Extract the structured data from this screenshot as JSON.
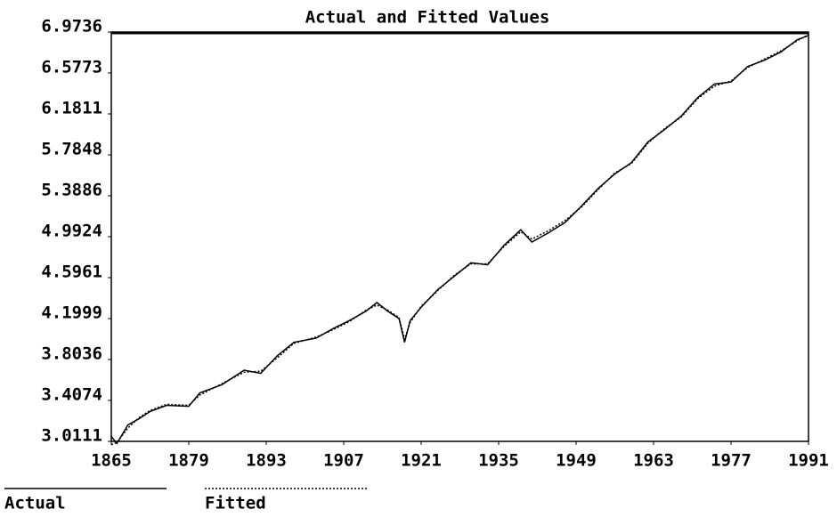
{
  "chart_data": {
    "type": "line",
    "title": "Actual and Fitted Values",
    "x": [
      1865,
      1866,
      1868,
      1870,
      1872,
      1875,
      1879,
      1881,
      1885,
      1889,
      1892,
      1895,
      1898,
      1902,
      1905,
      1908,
      1911,
      1913,
      1915,
      1917,
      1918,
      1919,
      1921,
      1924,
      1927,
      1930,
      1933,
      1936,
      1939,
      1941,
      1944,
      1947,
      1950,
      1953,
      1956,
      1959,
      1962,
      1965,
      1968,
      1971,
      1974,
      1977,
      1980,
      1983,
      1986,
      1989,
      1991
    ],
    "series": [
      {
        "name": "Actual",
        "color": "#000000",
        "values": [
          3.06,
          2.99,
          3.17,
          3.23,
          3.3,
          3.36,
          3.35,
          3.48,
          3.56,
          3.7,
          3.67,
          3.84,
          3.97,
          4.01,
          4.1,
          4.18,
          4.27,
          4.355,
          4.27,
          4.2,
          3.97,
          4.18,
          4.31,
          4.48,
          4.61,
          4.74,
          4.72,
          4.91,
          5.06,
          4.94,
          5.03,
          5.13,
          5.29,
          5.46,
          5.6,
          5.71,
          5.91,
          6.03,
          6.16,
          6.34,
          6.47,
          6.49,
          6.64,
          6.7,
          6.78,
          6.9,
          6.94
        ]
      },
      {
        "name": "Fitted",
        "color": "#000000",
        "values": [
          2.98,
          3.0,
          3.14,
          3.24,
          3.31,
          3.37,
          3.36,
          3.46,
          3.57,
          3.68,
          3.69,
          3.82,
          3.96,
          4.02,
          4.09,
          4.17,
          4.28,
          4.33,
          4.28,
          4.21,
          4.0,
          4.16,
          4.32,
          4.47,
          4.62,
          4.73,
          4.73,
          4.9,
          5.04,
          4.97,
          5.05,
          5.15,
          5.28,
          5.45,
          5.61,
          5.7,
          5.9,
          6.04,
          6.15,
          6.33,
          6.45,
          6.5,
          6.63,
          6.71,
          6.79,
          6.89,
          6.95
        ]
      }
    ],
    "xlim": [
      1865,
      1991
    ],
    "xticks": [
      1865,
      1879,
      1893,
      1907,
      1921,
      1935,
      1949,
      1963,
      1977,
      1991
    ],
    "ylim": [
      3.0111,
      6.9736
    ],
    "yticks": [
      3.0111,
      3.4074,
      3.8036,
      4.1999,
      4.5961,
      4.9924,
      5.3886,
      5.7848,
      6.1811,
      6.5773,
      6.9736
    ]
  }
}
